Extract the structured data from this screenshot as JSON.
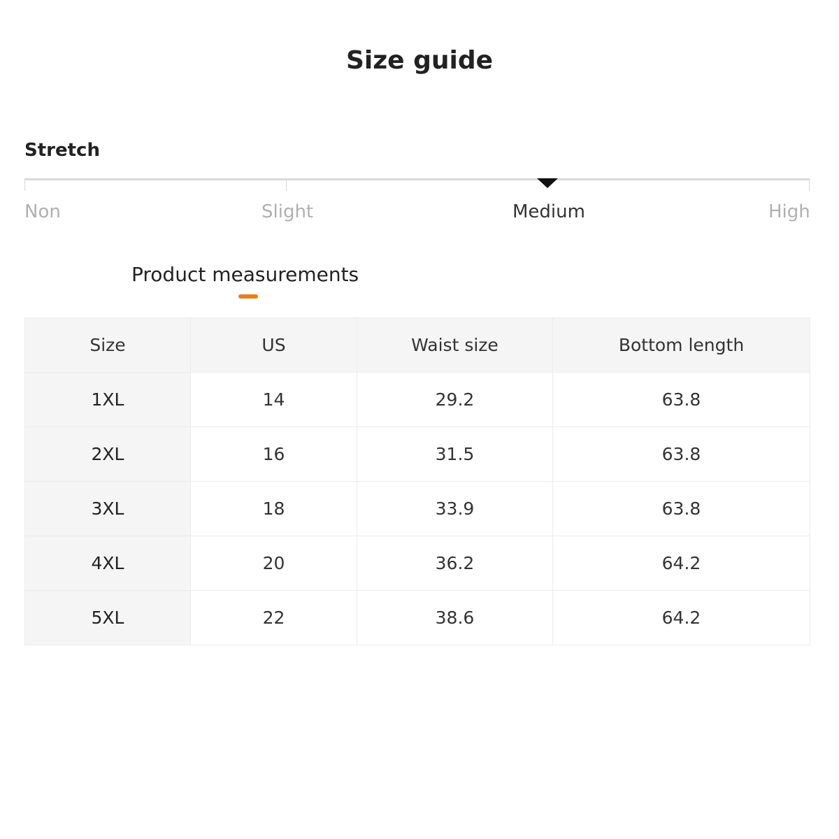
{
  "title": "Size guide",
  "stretch": {
    "label": "Stretch",
    "levels": [
      "Non",
      "Slight",
      "Medium",
      "High"
    ],
    "selected": "Medium"
  },
  "tab": {
    "label": "Product measurements",
    "accent": "#e97f14"
  },
  "table": {
    "headers": [
      "Size",
      "US",
      "Waist size",
      "Bottom length"
    ],
    "rows": [
      [
        "1XL",
        "14",
        "29.2",
        "63.8"
      ],
      [
        "2XL",
        "16",
        "31.5",
        "63.8"
      ],
      [
        "3XL",
        "18",
        "33.9",
        "63.8"
      ],
      [
        "4XL",
        "20",
        "36.2",
        "64.2"
      ],
      [
        "5XL",
        "22",
        "38.6",
        "64.2"
      ]
    ]
  }
}
